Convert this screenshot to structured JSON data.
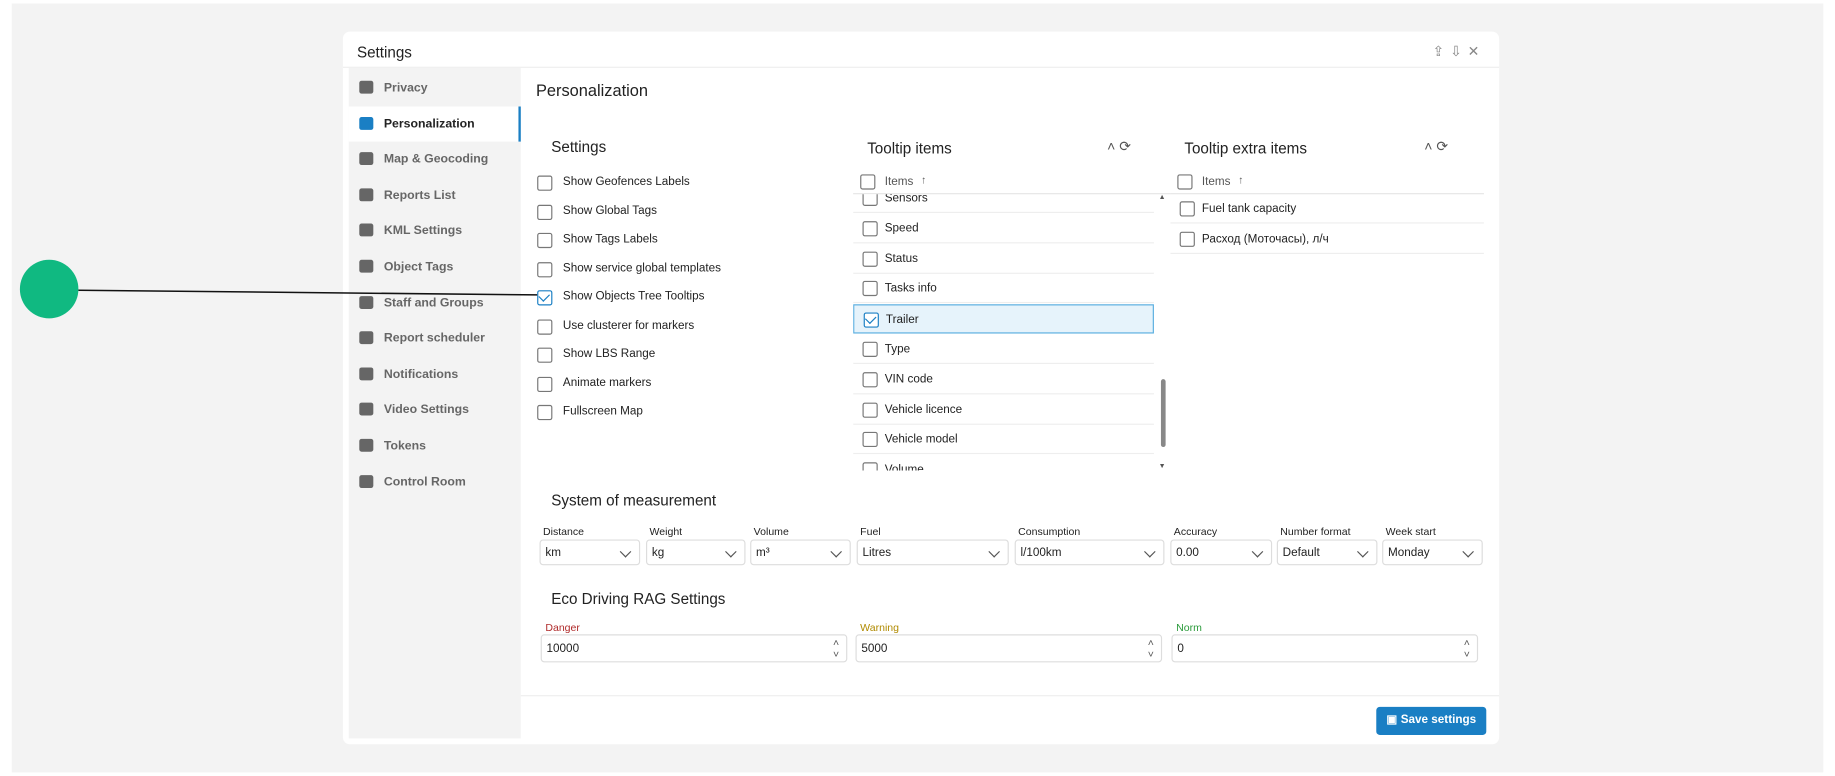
{
  "dialog": {
    "title": "Settings",
    "sidebar": [
      "Privacy",
      "Personalization",
      "Map & Geocoding",
      "Reports List",
      "KML Settings",
      "Object Tags",
      "Staff and Groups",
      "Report scheduler",
      "Notifications",
      "Video Settings",
      "Tokens",
      "Control Room"
    ],
    "active": 1,
    "heading": "Personalization",
    "settings": {
      "title": "Settings",
      "items": [
        {
          "label": "Show Geofences Labels",
          "checked": false
        },
        {
          "label": "Show Global Tags",
          "checked": false
        },
        {
          "label": "Show Tags Labels",
          "checked": false
        },
        {
          "label": "Show service global templates",
          "checked": false
        },
        {
          "label": "Show Objects Tree Tooltips",
          "checked": true
        },
        {
          "label": "Use clusterer for markers",
          "checked": false
        },
        {
          "label": "Show LBS Range",
          "checked": false
        },
        {
          "label": "Animate markers",
          "checked": false
        },
        {
          "label": "Fullscreen Map",
          "checked": false
        }
      ]
    },
    "tooltip": {
      "title": "Tooltip items",
      "column": "Items",
      "items": [
        {
          "label": "Sensors",
          "checked": false
        },
        {
          "label": "Speed",
          "checked": false
        },
        {
          "label": "Status",
          "checked": false
        },
        {
          "label": "Tasks info",
          "checked": false
        },
        {
          "label": "Trailer",
          "checked": true
        },
        {
          "label": "Type",
          "checked": false
        },
        {
          "label": "VIN code",
          "checked": false
        },
        {
          "label": "Vehicle licence",
          "checked": false
        },
        {
          "label": "Vehicle model",
          "checked": false
        },
        {
          "label": "Volume",
          "checked": false
        }
      ]
    },
    "extra": {
      "title": "Tooltip extra items",
      "column": "Items",
      "items": [
        {
          "label": "Fuel tank capacity",
          "checked": false
        },
        {
          "label": "Расход (Моточасы), л/ч",
          "checked": false
        }
      ]
    },
    "measurement": {
      "title": "System of measurement",
      "fields": [
        {
          "label": "Distance",
          "value": "km"
        },
        {
          "label": "Weight",
          "value": "kg"
        },
        {
          "label": "Volume",
          "value": "m³"
        },
        {
          "label": "Fuel",
          "value": "Litres"
        },
        {
          "label": "Consumption",
          "value": "l/100km"
        },
        {
          "label": "Accuracy",
          "value": "0.00"
        },
        {
          "label": "Number format",
          "value": "Default"
        },
        {
          "label": "Week start",
          "value": "Monday"
        }
      ]
    },
    "eco": {
      "title": "Eco Driving RAG Settings",
      "fields": [
        {
          "label": "Danger",
          "value": "10000",
          "color": "#b02a2a"
        },
        {
          "label": "Warning",
          "value": "5000",
          "color": "#b08a00"
        },
        {
          "label": "Norm",
          "value": "0",
          "color": "#2a9a3a"
        }
      ]
    },
    "save": "Save settings"
  }
}
